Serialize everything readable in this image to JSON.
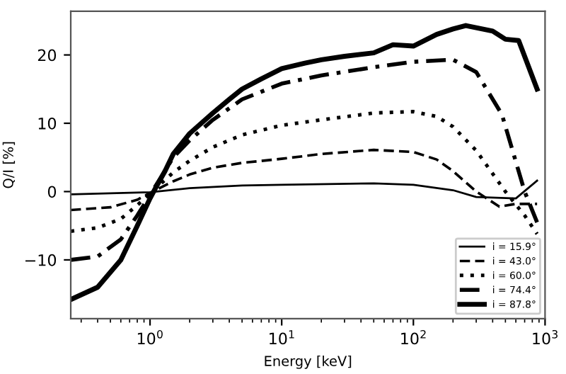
{
  "chart_data": {
    "type": "line",
    "xlabel": "Energy [keV]",
    "ylabel": "Q/I [%]",
    "log": "x",
    "xlim": [
      0.25,
      1000
    ],
    "xticks": [
      {
        "value": 1,
        "label": "10$^{0}$"
      },
      {
        "value": 10,
        "label": "10$^{1}$"
      },
      {
        "value": 100,
        "label": "10$^{2}$"
      },
      {
        "value": 1000,
        "label": "10$^{3}$"
      }
    ],
    "ylim": [
      -18.6,
      26.4
    ],
    "yticks": [
      -10,
      0,
      10,
      20
    ],
    "grid": false,
    "legend": "bottom right",
    "marker": "none",
    "series": [
      {
        "name": "i = 15.9°",
        "color": "#000000",
        "line_style": "solid",
        "x": [
          0.25,
          1.0,
          2,
          5,
          10,
          50,
          100,
          200,
          300,
          600,
          870
        ],
        "values": [
          -0.4,
          -0.1,
          0.5,
          0.9,
          1.0,
          1.2,
          1.0,
          0.2,
          -0.8,
          -1.0,
          1.6
        ]
      },
      {
        "name": "i = 43.0°",
        "color": "#000000",
        "line_style": "dashed",
        "x": [
          0.25,
          0.5,
          0.8,
          1.0,
          1.5,
          2,
          3,
          5,
          10,
          20,
          50,
          100,
          150,
          200,
          300,
          450,
          600,
          870
        ],
        "values": [
          -2.7,
          -2.3,
          -1.2,
          -0.2,
          1.5,
          2.5,
          3.5,
          4.2,
          4.8,
          5.5,
          6.1,
          5.8,
          4.7,
          3.0,
          0.0,
          -2.2,
          -1.8,
          -1.8
        ]
      },
      {
        "name": "i = 60.0°",
        "color": "#000000",
        "line_style": "dotted",
        "x": [
          0.25,
          0.4,
          0.6,
          0.8,
          1.0,
          1.5,
          2,
          3,
          5,
          10,
          20,
          50,
          100,
          150,
          200,
          300,
          500,
          700,
          870
        ],
        "values": [
          -5.8,
          -5.3,
          -4.0,
          -2.0,
          -0.3,
          2.8,
          4.5,
          6.5,
          8.3,
          9.7,
          10.5,
          11.5,
          11.7,
          11.0,
          9.5,
          6.0,
          0.0,
          -3.5,
          -6.2
        ]
      },
      {
        "name": "i = 74.4°",
        "color": "#000000",
        "line_style": "dashdot",
        "x": [
          0.25,
          0.4,
          0.6,
          0.8,
          1.0,
          1.5,
          2,
          3,
          5,
          10,
          20,
          50,
          100,
          200,
          300,
          470,
          700,
          870
        ],
        "values": [
          -10.0,
          -9.5,
          -7.0,
          -3.5,
          -0.5,
          5.0,
          7.5,
          10.5,
          13.5,
          15.8,
          17.0,
          18.2,
          19.0,
          19.3,
          17.5,
          11.3,
          0.0,
          -4.5
        ]
      },
      {
        "name": "i = 87.8°",
        "color": "#000000",
        "line_style": "solid",
        "x": [
          0.25,
          0.4,
          0.6,
          0.8,
          1.0,
          1.1,
          1.3,
          1.5,
          2,
          3,
          4,
          5,
          7,
          10,
          15,
          20,
          30,
          50,
          70,
          100,
          150,
          200,
          250,
          400,
          500,
          630,
          870
        ],
        "values": [
          -15.8,
          -14.0,
          -10.0,
          -5.0,
          -1.0,
          0.5,
          3.0,
          5.5,
          8.5,
          11.5,
          13.5,
          15.0,
          16.5,
          18.0,
          18.8,
          19.3,
          19.8,
          20.3,
          21.5,
          21.3,
          23.0,
          23.8,
          24.3,
          23.5,
          22.3,
          22.1,
          15.0
        ]
      }
    ]
  }
}
